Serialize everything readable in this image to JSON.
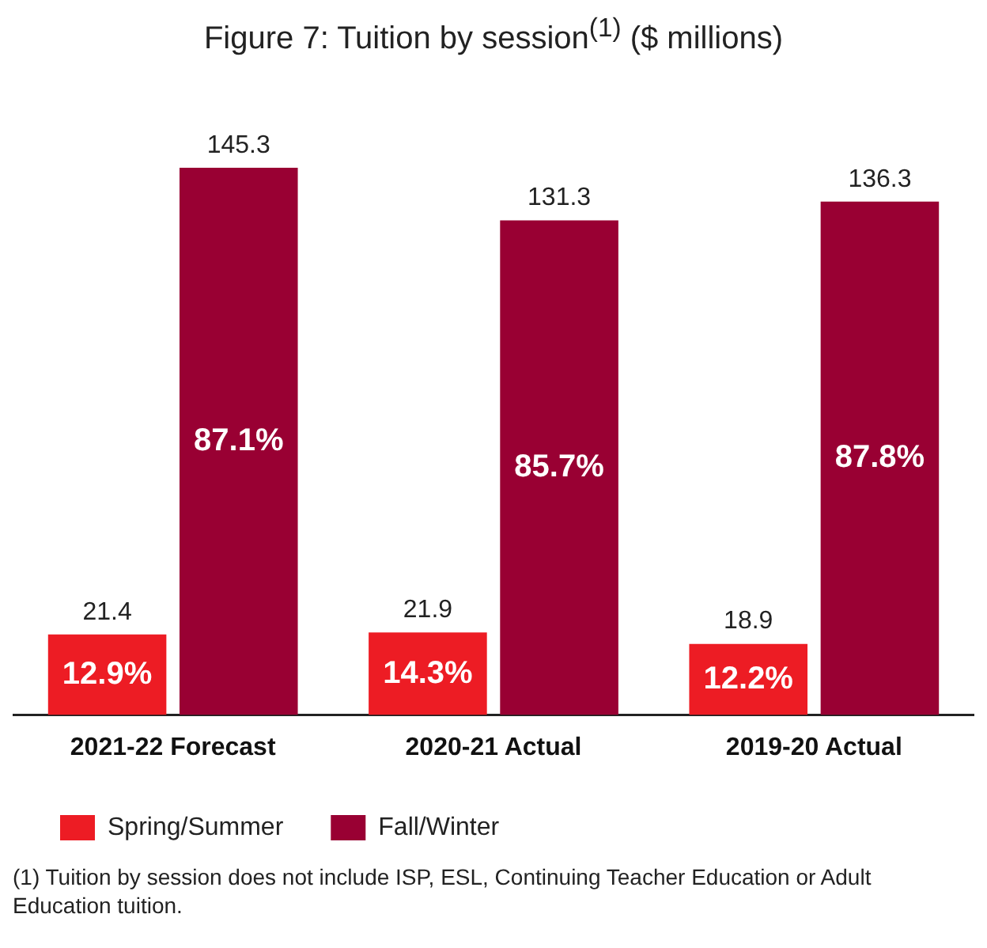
{
  "chart_data": {
    "type": "bar",
    "title": "Figure 7: Tuition by session$^{(1)}$ ($ millions)",
    "categories": [
      "2021-22 Forecast",
      "2020-21 Actual",
      "2019-20 Actual"
    ],
    "series": [
      {
        "name": "Spring/Summer",
        "color": "#ed1c24",
        "values": [
          21.4,
          21.9,
          18.9
        ]
      },
      {
        "name": "Fall/Winter",
        "color": "#990033",
        "values": [
          145.3,
          131.3,
          136.3
        ]
      }
    ],
    "data_labels": true,
    "grid": false,
    "legend": "bottom left",
    "tick_labels": "x",
    "annotations": [
      {
        "text": "12.9%",
        "x": "2021-22 Forecast",
        "y": 10.7
      },
      {
        "text": "87.1%",
        "x": "2021-22 Forecast",
        "y": 72.6
      },
      {
        "text": "14.3%",
        "x": "2020-21 Actual",
        "y": 10.9
      },
      {
        "text": "85.7%",
        "x": "2020-21 Actual",
        "y": 65.6
      },
      {
        "text": "12.2%",
        "x": "2019-20 Actual",
        "y": 9.4
      },
      {
        "text": "87.8%",
        "x": "2019-20 Actual",
        "y": 68.1
      },
      "(1) Tuition by session does not include ISP, ESL, Continuing Teacher Education or Adult Education tuition."
    ]
  }
}
